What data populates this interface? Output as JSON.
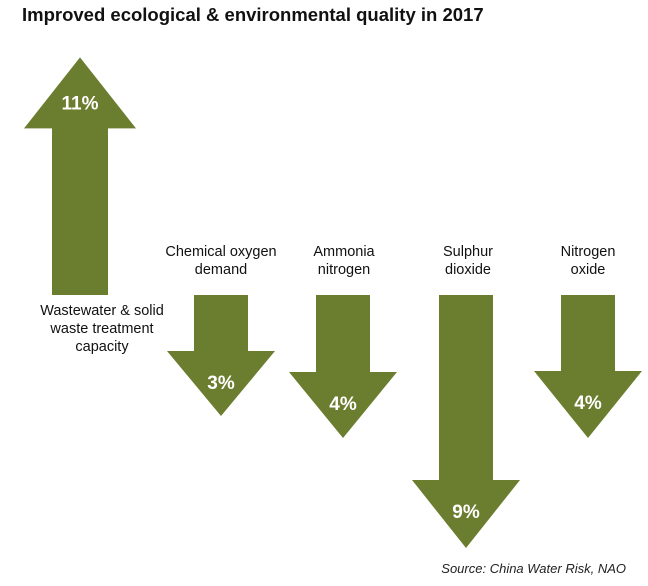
{
  "chart_data": {
    "type": "bar",
    "title": "Improved ecological & environmental quality in 2017",
    "source": "Source: China Water Risk, NAO",
    "colors": {
      "arrow": "#6b7d2e",
      "value_text": "#ffffff"
    },
    "items": [
      {
        "category_lines": [
          "Wastewater & solid",
          "waste treatment",
          "capacity"
        ],
        "direction": "up",
        "value": 11,
        "value_label": "11%"
      },
      {
        "category_lines": [
          "Chemical oxygen",
          "demand"
        ],
        "direction": "down",
        "value": 3,
        "value_label": "3%"
      },
      {
        "category_lines": [
          "Ammonia",
          "nitrogen"
        ],
        "direction": "down",
        "value": 4,
        "value_label": "4%"
      },
      {
        "category_lines": [
          "Sulphur",
          "dioxide"
        ],
        "direction": "down",
        "value": 9,
        "value_label": "9%"
      },
      {
        "category_lines": [
          "Nitrogen",
          "oxide"
        ],
        "direction": "down",
        "value": 4,
        "value_label": "4%"
      }
    ]
  }
}
